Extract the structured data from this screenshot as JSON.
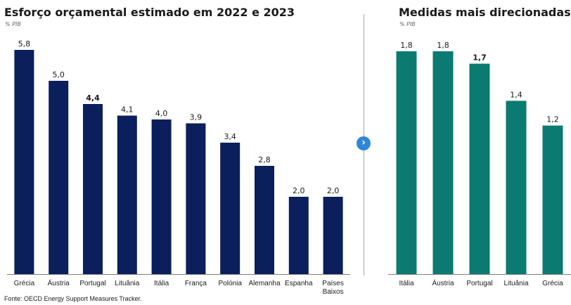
{
  "chart_data": [
    {
      "type": "bar",
      "title": "Esforço orçamental estimado em 2022 e 2023",
      "unit_label": "% PIB",
      "categories": [
        "Grécia",
        "Áustria",
        "Portugal",
        "Lituânia",
        "Itália",
        "França",
        "Polónia",
        "Alemanha",
        "Espanha",
        "Países Baixos"
      ],
      "values": [
        5.8,
        5.0,
        4.4,
        4.1,
        4.0,
        3.9,
        3.4,
        2.8,
        2.0,
        2.0
      ],
      "value_labels": [
        "5,8",
        "5,0",
        "4,4",
        "4,1",
        "4,0",
        "3,9",
        "3,4",
        "2,8",
        "2,0",
        "2,0"
      ],
      "highlight": "Portugal",
      "color": "#0b1f5c",
      "ylim": [
        0,
        5.8
      ],
      "grid": false
    },
    {
      "type": "bar",
      "title": "Medidas mais direcionadas",
      "unit_label": "% PIB",
      "categories": [
        "Itália",
        "Áustria",
        "Portugal",
        "Lituânia",
        "Grécia"
      ],
      "values": [
        1.8,
        1.8,
        1.7,
        1.4,
        1.2
      ],
      "value_labels": [
        "1,8",
        "1,8",
        "1,7",
        "1,4",
        "1,2"
      ],
      "highlight": "Portugal",
      "color": "#0b7a70",
      "ylim": [
        0,
        1.8
      ],
      "grid": false
    }
  ],
  "source": "Fonte: OECD Energy Support Measures Tracker."
}
